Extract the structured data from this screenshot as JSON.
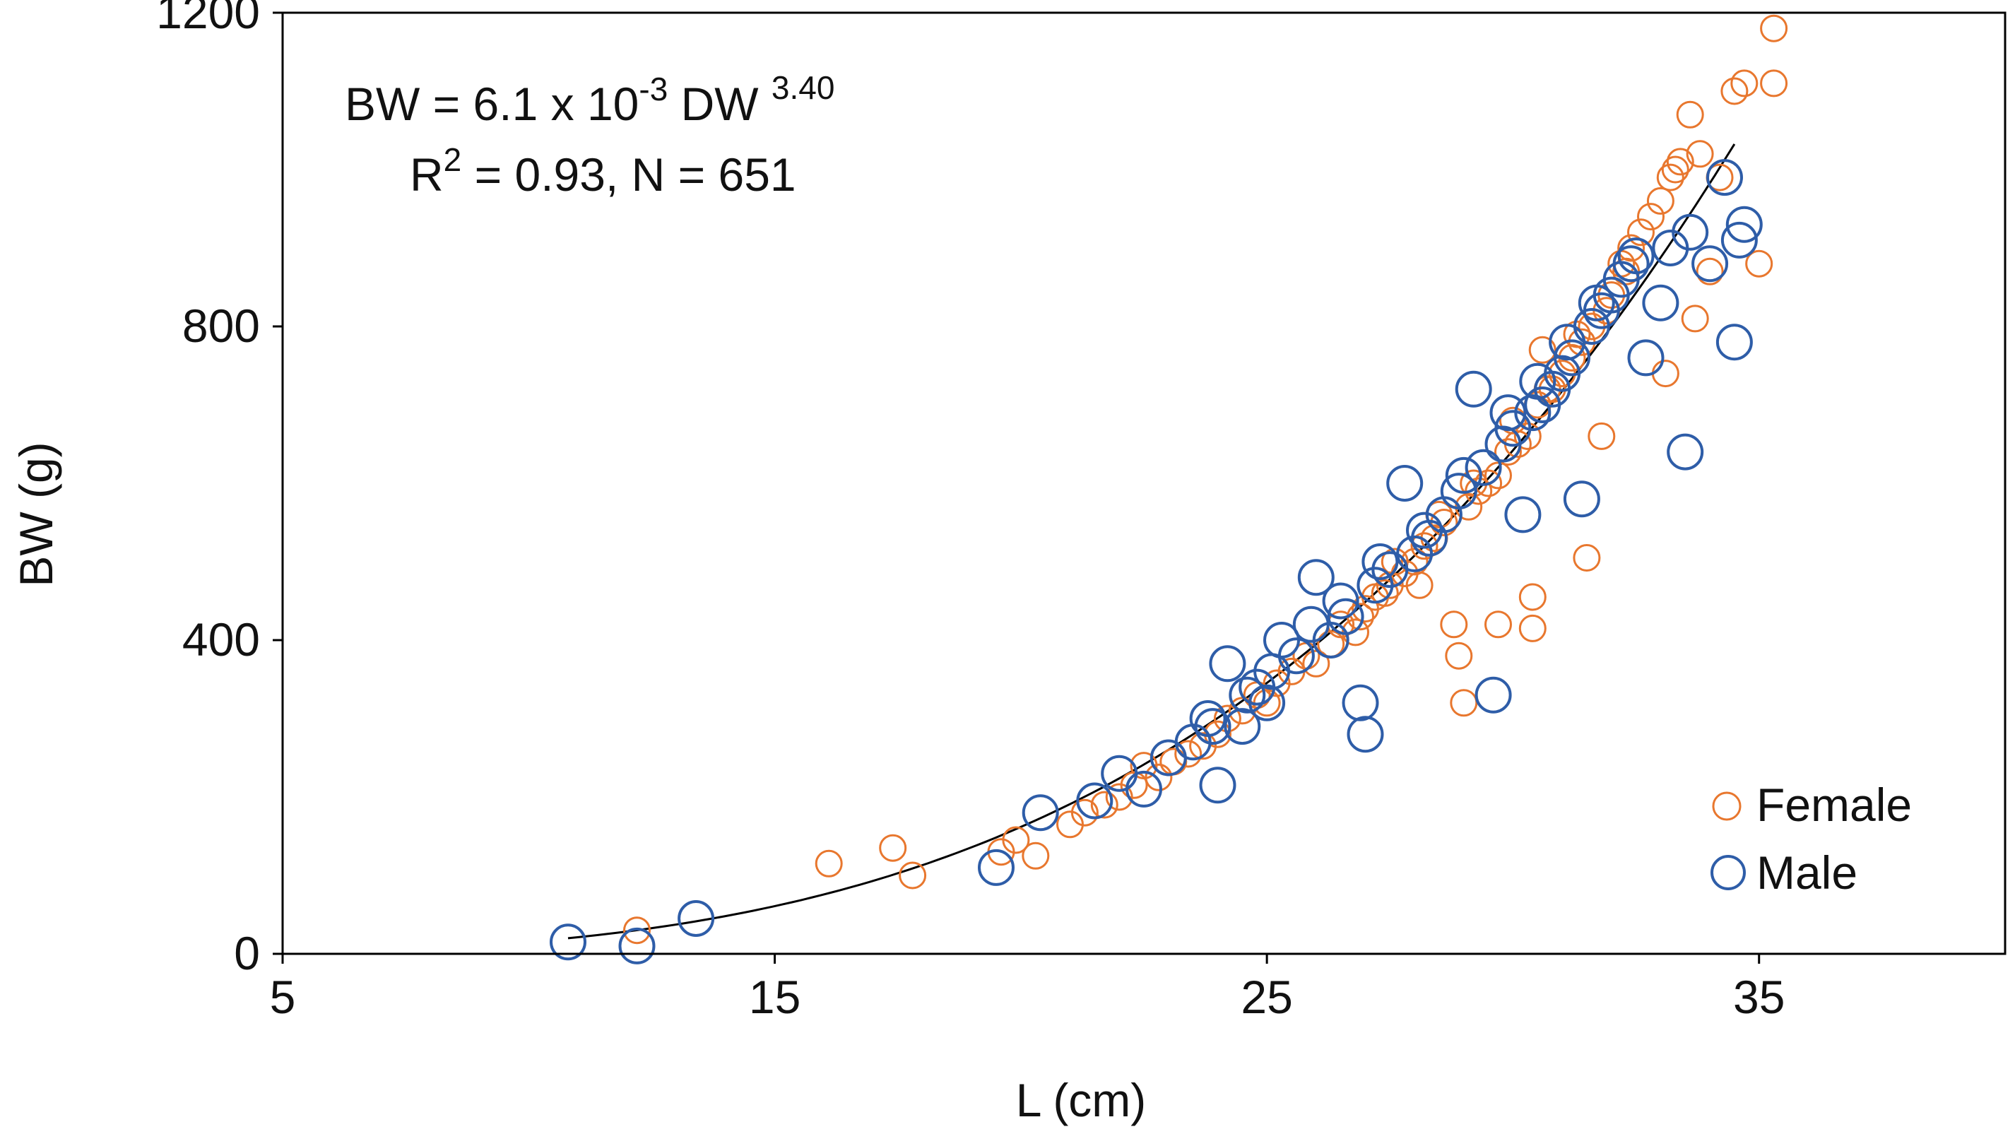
{
  "chart_data": {
    "type": "scatter",
    "xlabel": "L (cm)",
    "ylabel": "BW (g)",
    "xlim": [
      5,
      40
    ],
    "ylim": [
      0,
      1200
    ],
    "x_ticks": [
      5,
      15,
      25,
      35
    ],
    "y_ticks": [
      0,
      400,
      800,
      1200
    ],
    "grid": false,
    "legend_placement": "bottom-right",
    "annotation": {
      "line1_prefix": "BW = 6.1 x 10",
      "line1_exponent": "-3",
      "line1_mid": " DW ",
      "line1_power": "3.40",
      "line2_prefix": "R",
      "line2_sup": "2",
      "line2_suffix": " = 0.93, N = 651"
    },
    "fit": {
      "name": "BW = 6.1e-3 * L^3.40",
      "a": 0.0061,
      "b": 3.4,
      "x_range": [
        10.8,
        34.5
      ]
    },
    "colors": {
      "female": "#E8772E",
      "male": "#2E5DA8",
      "fit": "#000000"
    },
    "series": [
      {
        "name": "Female",
        "color": "#E8772E",
        "points": [
          [
            12.2,
            30
          ],
          [
            16.1,
            115
          ],
          [
            17.4,
            135
          ],
          [
            17.8,
            100
          ],
          [
            19.6,
            130
          ],
          [
            19.9,
            145
          ],
          [
            20.3,
            125
          ],
          [
            21.0,
            165
          ],
          [
            21.3,
            180
          ],
          [
            21.7,
            190
          ],
          [
            22.0,
            200
          ],
          [
            22.3,
            215
          ],
          [
            22.5,
            240
          ],
          [
            22.8,
            225
          ],
          [
            23.1,
            245
          ],
          [
            23.4,
            255
          ],
          [
            23.7,
            265
          ],
          [
            24.0,
            280
          ],
          [
            24.2,
            300
          ],
          [
            24.5,
            310
          ],
          [
            24.8,
            330
          ],
          [
            25.0,
            320
          ],
          [
            25.2,
            345
          ],
          [
            25.5,
            360
          ],
          [
            25.8,
            380
          ],
          [
            26.0,
            370
          ],
          [
            26.3,
            395
          ],
          [
            26.5,
            420
          ],
          [
            26.8,
            410
          ],
          [
            27.0,
            440
          ],
          [
            27.2,
            455
          ],
          [
            27.5,
            470
          ],
          [
            27.8,
            485
          ],
          [
            28.0,
            500
          ],
          [
            28.2,
            520
          ],
          [
            28.4,
            530
          ],
          [
            28.6,
            550
          ],
          [
            28.8,
            420
          ],
          [
            28.9,
            380
          ],
          [
            29.0,
            320
          ],
          [
            29.1,
            570
          ],
          [
            29.3,
            590
          ],
          [
            29.5,
            600
          ],
          [
            29.7,
            610
          ],
          [
            29.7,
            420
          ],
          [
            29.9,
            640
          ],
          [
            30.1,
            650
          ],
          [
            30.3,
            660
          ],
          [
            30.4,
            455
          ],
          [
            30.4,
            415
          ],
          [
            30.5,
            700
          ],
          [
            30.6,
            770
          ],
          [
            30.8,
            720
          ],
          [
            31.0,
            740
          ],
          [
            31.2,
            760
          ],
          [
            31.4,
            780
          ],
          [
            31.5,
            505
          ],
          [
            31.6,
            800
          ],
          [
            31.8,
            660
          ],
          [
            32.0,
            840
          ],
          [
            32.2,
            880
          ],
          [
            32.4,
            900
          ],
          [
            32.6,
            920
          ],
          [
            32.8,
            940
          ],
          [
            33.0,
            960
          ],
          [
            33.1,
            740
          ],
          [
            33.2,
            990
          ],
          [
            33.3,
            1000
          ],
          [
            33.4,
            1010
          ],
          [
            33.6,
            1070
          ],
          [
            33.7,
            810
          ],
          [
            33.8,
            1020
          ],
          [
            34.0,
            870
          ],
          [
            34.2,
            990
          ],
          [
            34.5,
            1100
          ],
          [
            34.7,
            1110
          ],
          [
            35.0,
            880
          ],
          [
            35.3,
            1180
          ],
          [
            35.3,
            1110
          ],
          [
            27.4,
            460
          ],
          [
            26.9,
            430
          ],
          [
            27.6,
            500
          ],
          [
            28.1,
            470
          ],
          [
            28.5,
            560
          ],
          [
            29.2,
            600
          ],
          [
            30.0,
            680
          ],
          [
            30.7,
            720
          ],
          [
            31.3,
            790
          ],
          [
            31.9,
            820
          ],
          [
            32.3,
            870
          ]
        ]
      },
      {
        "name": "Male",
        "color": "#2E5DA8",
        "points": [
          [
            10.8,
            15
          ],
          [
            12.2,
            10
          ],
          [
            13.4,
            45
          ],
          [
            19.5,
            110
          ],
          [
            20.4,
            180
          ],
          [
            21.5,
            195
          ],
          [
            22.0,
            230
          ],
          [
            22.5,
            210
          ],
          [
            23.0,
            250
          ],
          [
            23.5,
            270
          ],
          [
            23.8,
            300
          ],
          [
            24.0,
            215
          ],
          [
            24.2,
            370
          ],
          [
            24.5,
            290
          ],
          [
            24.8,
            340
          ],
          [
            25.0,
            320
          ],
          [
            25.3,
            400
          ],
          [
            25.6,
            380
          ],
          [
            25.9,
            420
          ],
          [
            26.0,
            480
          ],
          [
            26.3,
            400
          ],
          [
            26.6,
            430
          ],
          [
            26.9,
            320
          ],
          [
            27.0,
            280
          ],
          [
            27.2,
            470
          ],
          [
            27.5,
            490
          ],
          [
            27.8,
            600
          ],
          [
            28.0,
            510
          ],
          [
            28.3,
            530
          ],
          [
            28.6,
            560
          ],
          [
            28.9,
            590
          ],
          [
            29.2,
            720
          ],
          [
            29.4,
            620
          ],
          [
            29.6,
            330
          ],
          [
            29.8,
            650
          ],
          [
            30.0,
            670
          ],
          [
            30.2,
            560
          ],
          [
            30.4,
            690
          ],
          [
            30.6,
            700
          ],
          [
            30.8,
            720
          ],
          [
            31.0,
            740
          ],
          [
            31.2,
            760
          ],
          [
            31.4,
            580
          ],
          [
            31.6,
            800
          ],
          [
            31.8,
            820
          ],
          [
            32.0,
            840
          ],
          [
            32.2,
            860
          ],
          [
            32.4,
            880
          ],
          [
            32.7,
            760
          ],
          [
            33.0,
            830
          ],
          [
            33.2,
            900
          ],
          [
            33.5,
            640
          ],
          [
            33.6,
            920
          ],
          [
            34.0,
            880
          ],
          [
            34.3,
            990
          ],
          [
            34.5,
            780
          ],
          [
            34.6,
            910
          ],
          [
            34.7,
            930
          ],
          [
            26.5,
            450
          ],
          [
            27.3,
            500
          ],
          [
            28.2,
            540
          ],
          [
            29.0,
            610
          ],
          [
            29.9,
            690
          ],
          [
            30.5,
            730
          ],
          [
            31.1,
            780
          ],
          [
            31.7,
            830
          ],
          [
            32.5,
            890
          ],
          [
            25.1,
            360
          ],
          [
            24.6,
            330
          ],
          [
            23.9,
            290
          ]
        ]
      }
    ]
  }
}
